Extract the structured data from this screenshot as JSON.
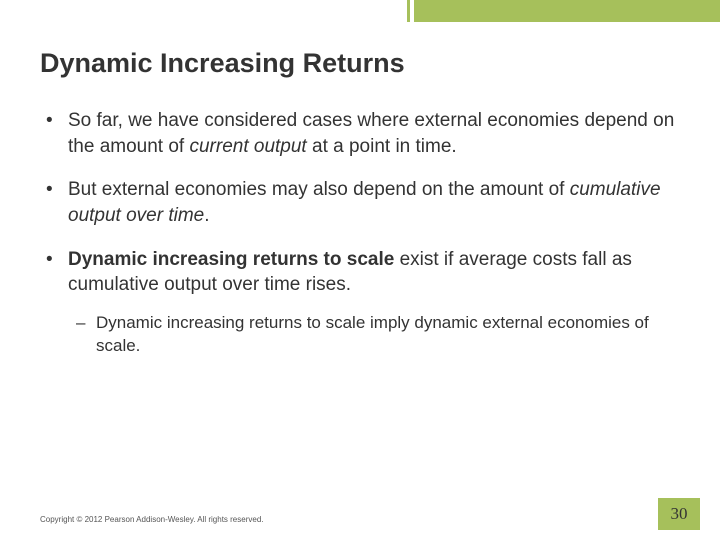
{
  "accent_color": "#a6c05b",
  "title": "Dynamic Increasing Returns",
  "bullets": {
    "b1_pre": "So far, we have considered cases where external economies depend on the amount of ",
    "b1_italic": "current output",
    "b1_post": " at a point in time.",
    "b2_pre": "But external economies may also depend on the amount of ",
    "b2_italic": "cumulative output over time",
    "b2_post": ".",
    "b3_bold": "Dynamic increasing returns to scale",
    "b3_post": " exist if average costs fall as cumulative output over time rises.",
    "b3_sub": "Dynamic increasing returns to scale imply dynamic external economies of scale."
  },
  "copyright": "Copyright © 2012 Pearson Addison-Wesley. All rights reserved.",
  "page_number": "30"
}
